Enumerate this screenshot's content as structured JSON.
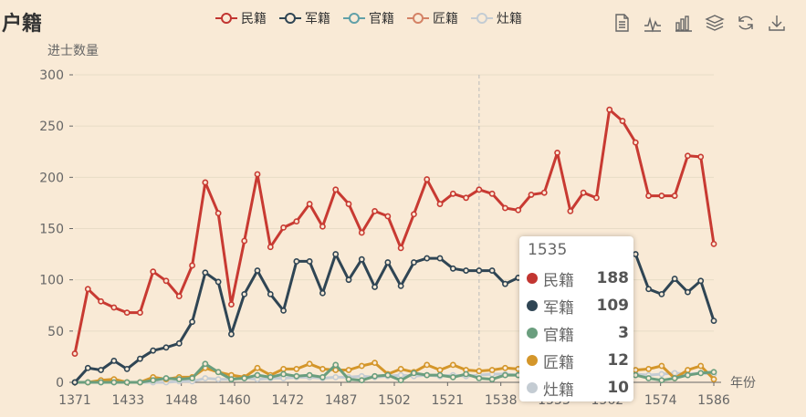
{
  "title": "户籍",
  "legend": [
    {
      "name": "民籍",
      "color": "#c23531"
    },
    {
      "name": "军籍",
      "color": "#2f4554"
    },
    {
      "name": "官籍",
      "color": "#61a0a8"
    },
    {
      "name": "匠籍",
      "color": "#d48265"
    },
    {
      "name": "灶籍",
      "color": "#c4ccd3"
    }
  ],
  "toolbox": [
    "data-view-icon",
    "line-chart-icon",
    "bar-chart-icon",
    "stack-icon",
    "restore-icon",
    "download-icon"
  ],
  "chart_data": {
    "type": "line",
    "ylabel": "进士数量",
    "xlabel": "年份",
    "ylim": [
      0,
      300
    ],
    "yticks": [
      0,
      50,
      100,
      150,
      200,
      250,
      300
    ],
    "xtick_labels": [
      "1371",
      "1433",
      "1448",
      "1460",
      "1472",
      "1487",
      "1502",
      "1521",
      "1538",
      "1553",
      "1562",
      "1574",
      "1586"
    ],
    "grid": true,
    "legend_position": "top",
    "series": [
      {
        "name": "民籍",
        "color": "#c83a32",
        "values": [
          28,
          91,
          79,
          73,
          68,
          68,
          108,
          99,
          84,
          114,
          195,
          165,
          76,
          138,
          203,
          132,
          151,
          157,
          174,
          152,
          188,
          174,
          146,
          167,
          162,
          131,
          164,
          198,
          174,
          184,
          180,
          188,
          184,
          170,
          168,
          183,
          185,
          224,
          167,
          185,
          180,
          266,
          255,
          234,
          182,
          182,
          182,
          221,
          220,
          135
        ]
      },
      {
        "name": "军籍",
        "color": "#2f4554",
        "values": [
          0,
          14,
          12,
          21,
          13,
          23,
          31,
          34,
          38,
          59,
          107,
          98,
          47,
          86,
          109,
          86,
          70,
          118,
          118,
          87,
          125,
          100,
          120,
          93,
          117,
          94,
          117,
          121,
          121,
          111,
          109,
          109,
          109,
          96,
          102,
          106,
          106,
          108,
          106,
          110,
          110,
          108,
          120,
          125,
          91,
          86,
          101,
          88,
          99,
          60
        ]
      },
      {
        "name": "官籍",
        "color": "#6a9e7e",
        "values": [
          0,
          0,
          0,
          0,
          0,
          0,
          2,
          4,
          3,
          4,
          18,
          10,
          3,
          4,
          7,
          5,
          8,
          6,
          7,
          5,
          17,
          3,
          2,
          6,
          7,
          2,
          9,
          7,
          7,
          5,
          8,
          4,
          3,
          7,
          7,
          7,
          8,
          4,
          8,
          7,
          7,
          5,
          8,
          7,
          4,
          2,
          4,
          7,
          9,
          10
        ]
      },
      {
        "name": "匠籍",
        "color": "#d4962a",
        "values": [
          0,
          0,
          2,
          3,
          0,
          0,
          5,
          3,
          5,
          5,
          14,
          10,
          7,
          5,
          14,
          7,
          13,
          13,
          18,
          13,
          12,
          12,
          16,
          19,
          8,
          13,
          10,
          17,
          12,
          17,
          12,
          11,
          12,
          14,
          13,
          13,
          10,
          12,
          15,
          13,
          13,
          12,
          16,
          12,
          13,
          16,
          4,
          12,
          16,
          3
        ]
      },
      {
        "name": "灶籍",
        "color": "#c4ccd3",
        "values": [
          0,
          0,
          0,
          0,
          0,
          0,
          0,
          0,
          1,
          1,
          4,
          3,
          3,
          4,
          3,
          4,
          4,
          5,
          5,
          4,
          5,
          5,
          6,
          5,
          6,
          7,
          6,
          7,
          6,
          7,
          6,
          7,
          8,
          8,
          7,
          7,
          8,
          7,
          8,
          8,
          8,
          7,
          8,
          8,
          7,
          8,
          9,
          8,
          9,
          8
        ]
      }
    ]
  },
  "tooltip": {
    "title": "1535",
    "rows": [
      {
        "name": "民籍",
        "value": "188",
        "color": "#c23531"
      },
      {
        "name": "军籍",
        "value": "109",
        "color": "#2f4554"
      },
      {
        "name": "官籍",
        "value": "3",
        "color": "#6a9e7e"
      },
      {
        "name": "匠籍",
        "value": "12",
        "color": "#d4962a"
      },
      {
        "name": "灶籍",
        "value": "10",
        "color": "#c4ccd3"
      }
    ]
  }
}
